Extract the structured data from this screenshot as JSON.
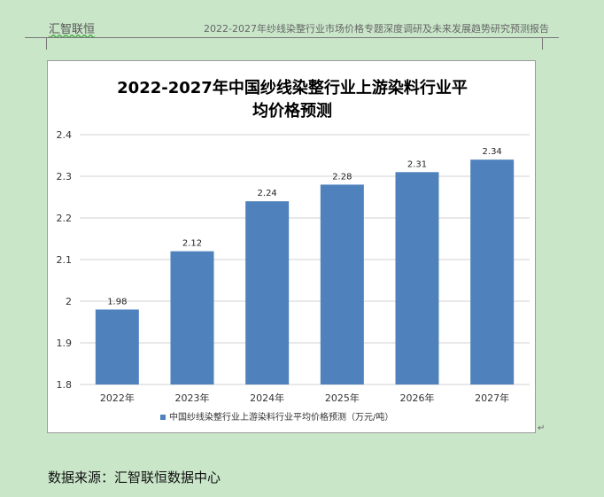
{
  "header": {
    "brand": "汇智联恒",
    "report_title": "2022-2027年纱线染整行业市场价格专题深度调研及未来发展趋势研究预测报告"
  },
  "source_text": "数据来源：汇智联恒数据中心",
  "colors": {
    "bar": "#4f81bd",
    "background": "#c9e6c9",
    "grid": "#d0d0d0"
  },
  "chart_data": {
    "type": "bar",
    "title_lines": [
      "2022-2027年中国纱线染整行业上游染料行业平",
      "均价格预测"
    ],
    "categories": [
      "2022年",
      "2023年",
      "2024年",
      "2025年",
      "2026年",
      "2027年"
    ],
    "series": [
      {
        "name": "中国纱线染整行业上游染料行业平均价格预测（万元/吨）",
        "values": [
          1.98,
          2.12,
          2.24,
          2.28,
          2.31,
          2.34
        ]
      }
    ],
    "data_labels": [
      "1.98",
      "2.12",
      "2.24",
      "2.28",
      "2.31",
      "2.34"
    ],
    "y_ticks": [
      "1.8",
      "1.9",
      "2",
      "2.1",
      "2.2",
      "2.3",
      "2.4"
    ],
    "ylim": [
      1.8,
      2.4
    ],
    "grid": true,
    "legend_position": "bottom"
  }
}
